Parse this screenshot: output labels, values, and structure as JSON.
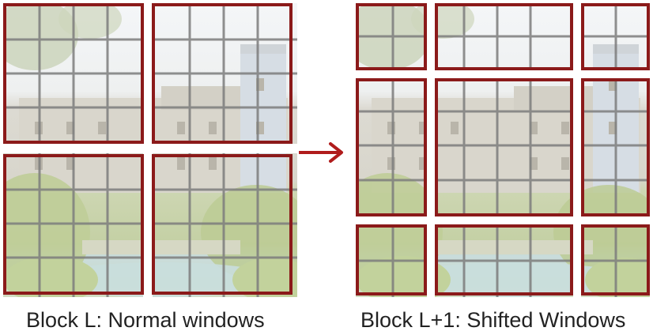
{
  "captions": {
    "left": "Block L: Normal windows",
    "right": "Block L+1: Shifted Windows"
  },
  "colors": {
    "window_border": "#8b1a1a",
    "grid_line": "#7d7d7d",
    "arrow": "#b01c1c",
    "sky": "#f3f6f8",
    "castle": "#dcdcd6",
    "foliage": "#c6d3a6",
    "foliage_dark": "#b1c18c",
    "water": "#c8dddf"
  },
  "icons": {
    "arrow": "right-arrow-icon",
    "background": "castle-garden-photo"
  }
}
